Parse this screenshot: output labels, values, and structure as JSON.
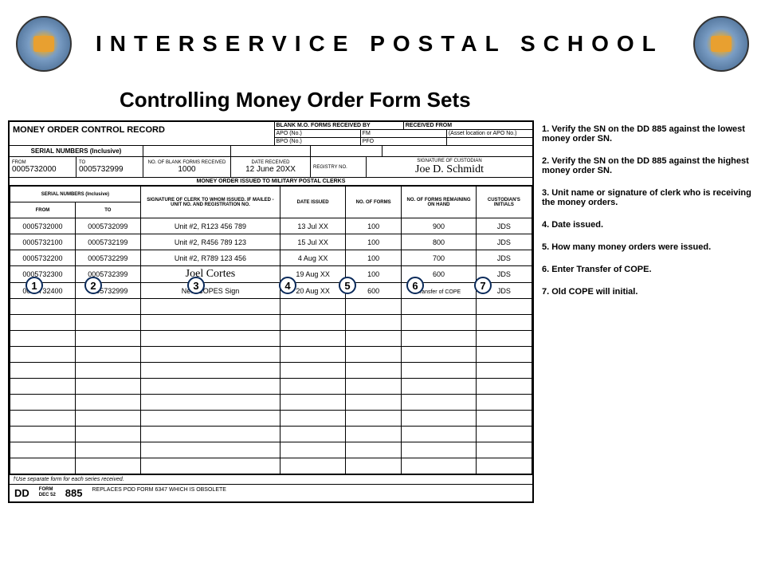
{
  "header": {
    "title": "INTERSERVICE POSTAL SCHOOL",
    "subtitle": "Controlling Money Order Form Sets"
  },
  "form": {
    "title": "MONEY ORDER CONTROL RECORD",
    "top_headers": {
      "blank_forms": "BLANK M.O. FORMS RECEIVED BY",
      "received_from": "RECEIVED FROM",
      "apo": "APO (No.)",
      "bpo": "BPO (No.)",
      "fm": "FM",
      "pfo": "PFO",
      "asset": "(Asset location or APO No.)"
    },
    "mid": {
      "sn_label": "SERIAL NUMBERS  (Inclusive)",
      "from_label": "FROM",
      "to_label": "TO",
      "from": "0005732000",
      "to": "0005732999",
      "blank_label": "NO. OF BLANK FORMS RECEIVED",
      "blank_val": "1000",
      "date_label": "DATE RECEIVED",
      "date_val": "12 June 20XX",
      "reg_label": "REGISTRY NO.",
      "sig_label": "SIGNATURE OF CUSTODIAN",
      "sig_val": "Joe D. Schmidt"
    },
    "issued_header": "MONEY ORDER ISSUED TO MILITARY POSTAL CLERKS",
    "cols": {
      "sn": "SERIAL NUMBERS  (Inclusive)",
      "from": "FROM",
      "to": "TO",
      "sig": "SIGNATURE OF CLERK TO WHOM ISSUED. IF MAILED - UNIT NO. AND REGISTRATION NO.",
      "date": "DATE ISSUED",
      "noforms": "NO. OF FORMS",
      "remain": "NO. OF FORMS REMAINING ON HAND",
      "init": "CUSTODIAN'S INITIALS"
    },
    "rows": [
      {
        "from": "0005732000",
        "to": "0005732099",
        "sig": "Unit #2, R123 456 789",
        "date": "13 Jul XX",
        "nf": "100",
        "rem": "900",
        "init": "JDS"
      },
      {
        "from": "0005732100",
        "to": "0005732199",
        "sig": "Unit #2, R456 789 123",
        "date": "15 Jul XX",
        "nf": "100",
        "rem": "800",
        "init": "JDS"
      },
      {
        "from": "0005732200",
        "to": "0005732299",
        "sig": "Unit #2, R789 123 456",
        "date": "4 Aug XX",
        "nf": "100",
        "rem": "700",
        "init": "JDS"
      },
      {
        "from": "0005732300",
        "to": "0005732399",
        "sig": "Joel Cortes",
        "date": "19 Aug XX",
        "nf": "100",
        "rem": "600",
        "init": "JDS",
        "sig_cursive": true
      },
      {
        "from": "0005732400",
        "to": "0005732999",
        "sig": "New COPES Sign",
        "date": "20 Aug XX",
        "nf": "600",
        "rem": "Transfer of COPE",
        "init": "JDS",
        "rem_small": true
      }
    ],
    "blank_row_count": 11,
    "note": "†Use separate form for each series received.",
    "dd": "DD",
    "form_no": "885",
    "form_sub": "FORM\nDEC 52",
    "replaces": "REPLACES POD FORM 6347 WHICH IS OBSOLETE"
  },
  "callouts": [
    "1",
    "2",
    "3",
    "4",
    "5",
    "6",
    "7"
  ],
  "instructions": [
    "1.    Verify the SN on the DD 885 against the lowest money order SN.",
    "2.    Verify the SN on the DD 885 against the highest money order SN.",
    "3.    Unit name or signature of clerk who is receiving the money orders.",
    "4.    Date issued.",
    "5.    How many money orders were issued.",
    "6.    Enter Transfer of COPE.",
    "7.    Old COPE will initial."
  ],
  "colors": {
    "callout_border": "#0a2a5a"
  }
}
